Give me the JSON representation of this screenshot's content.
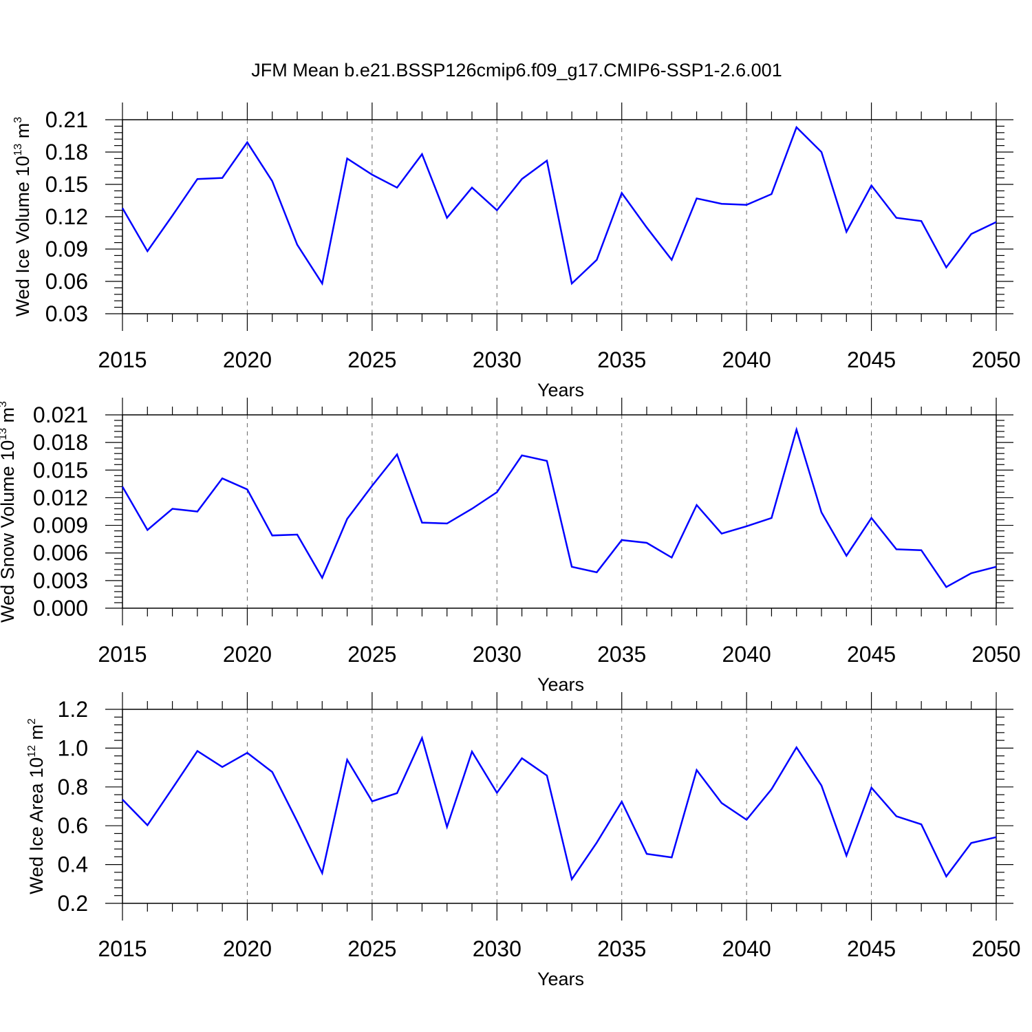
{
  "title": "JFM Mean b.e21.BSSP126cmip6.f09_g17.CMIP6-SSP1-2.6.001",
  "chart_data": [
    {
      "type": "line",
      "title": "JFM Mean b.e21.BSSP126cmip6.f09_g17.CMIP6-SSP1-2.6.001",
      "xlabel": "Years",
      "ylabel": {
        "prefix": "Wed Ice Volume 10",
        "exp": "13",
        "unit": " m",
        "unit_exp": "3"
      },
      "color": "#0000ff",
      "xlim": [
        2015,
        2050
      ],
      "ylim": [
        0.03,
        0.21
      ],
      "yticks": [
        "0.03",
        "0.06",
        "0.09",
        "0.12",
        "0.15",
        "0.18",
        "0.21"
      ],
      "xticks": [
        "2015",
        "2020",
        "2025",
        "2030",
        "2035",
        "2040",
        "2045",
        "2050"
      ],
      "x": [
        2015,
        2016,
        2017,
        2018,
        2019,
        2020,
        2021,
        2022,
        2023,
        2024,
        2025,
        2026,
        2027,
        2028,
        2029,
        2030,
        2031,
        2032,
        2033,
        2034,
        2035,
        2036,
        2037,
        2038,
        2039,
        2040,
        2041,
        2042,
        2043,
        2044,
        2045,
        2046,
        2047,
        2048,
        2049,
        2050
      ],
      "values": [
        0.128,
        0.088,
        0.121,
        0.155,
        0.156,
        0.189,
        0.153,
        0.094,
        0.058,
        0.174,
        0.159,
        0.147,
        0.178,
        0.119,
        0.147,
        0.126,
        0.155,
        0.172,
        0.058,
        0.08,
        0.142,
        0.11,
        0.08,
        0.137,
        0.132,
        0.131,
        0.141,
        0.203,
        0.18,
        0.106,
        0.149,
        0.119,
        0.116,
        0.073,
        0.104,
        0.115
      ]
    },
    {
      "type": "line",
      "xlabel": "Years",
      "ylabel": {
        "prefix": "Wed Snow Volume 10",
        "exp": "13",
        "unit": " m",
        "unit_exp": "3"
      },
      "color": "#0000ff",
      "xlim": [
        2015,
        2050
      ],
      "ylim": [
        0.0,
        0.021
      ],
      "yticks": [
        "0.000",
        "0.003",
        "0.006",
        "0.009",
        "0.012",
        "0.015",
        "0.018",
        "0.021"
      ],
      "xticks": [
        "2015",
        "2020",
        "2025",
        "2030",
        "2035",
        "2040",
        "2045",
        "2050"
      ],
      "x": [
        2015,
        2016,
        2017,
        2018,
        2019,
        2020,
        2021,
        2022,
        2023,
        2024,
        2025,
        2026,
        2027,
        2028,
        2029,
        2030,
        2031,
        2032,
        2033,
        2034,
        2035,
        2036,
        2037,
        2038,
        2039,
        2040,
        2041,
        2042,
        2043,
        2044,
        2045,
        2046,
        2047,
        2048,
        2049,
        2050
      ],
      "values": [
        0.0132,
        0.0085,
        0.0108,
        0.0105,
        0.0141,
        0.0129,
        0.0079,
        0.008,
        0.0033,
        0.0097,
        0.0133,
        0.0167,
        0.0093,
        0.0092,
        0.0108,
        0.0126,
        0.0166,
        0.016,
        0.0045,
        0.0039,
        0.0074,
        0.0071,
        0.0055,
        0.0112,
        0.0081,
        0.0089,
        0.0098,
        0.0194,
        0.0104,
        0.0057,
        0.0098,
        0.0064,
        0.0063,
        0.0023,
        0.0038,
        0.0045
      ]
    },
    {
      "type": "line",
      "xlabel": "Years",
      "ylabel": {
        "prefix": "Wed Ice Area 10",
        "exp": "12",
        "unit": " m",
        "unit_exp": "2"
      },
      "color": "#0000ff",
      "xlim": [
        2015,
        2050
      ],
      "ylim": [
        0.2,
        1.2
      ],
      "yticks": [
        "0.2",
        "0.4",
        "0.6",
        "0.8",
        "1.0",
        "1.2"
      ],
      "xticks": [
        "2015",
        "2020",
        "2025",
        "2030",
        "2035",
        "2040",
        "2045",
        "2050"
      ],
      "x": [
        2015,
        2016,
        2017,
        2018,
        2019,
        2020,
        2021,
        2022,
        2023,
        2024,
        2025,
        2026,
        2027,
        2028,
        2029,
        2030,
        2031,
        2032,
        2033,
        2034,
        2035,
        2036,
        2037,
        2038,
        2039,
        2040,
        2041,
        2042,
        2043,
        2044,
        2045,
        2046,
        2047,
        2048,
        2049,
        2050
      ],
      "values": [
        0.735,
        0.603,
        0.793,
        0.985,
        0.903,
        0.976,
        0.877,
        0.622,
        0.356,
        0.94,
        0.726,
        0.768,
        1.052,
        0.594,
        0.982,
        0.77,
        0.948,
        0.859,
        0.324,
        0.513,
        0.724,
        0.455,
        0.437,
        0.887,
        0.717,
        0.631,
        0.788,
        1.004,
        0.807,
        0.446,
        0.796,
        0.649,
        0.607,
        0.339,
        0.511,
        0.541
      ]
    }
  ]
}
